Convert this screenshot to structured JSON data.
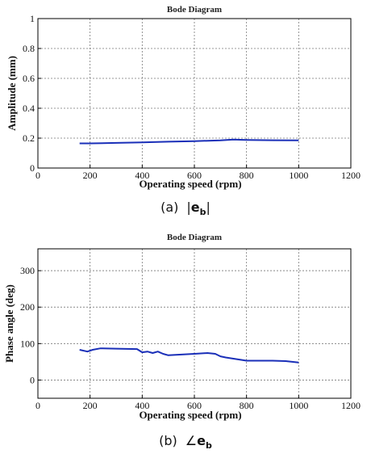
{
  "charts": [
    {
      "title": "Bode Diagram",
      "xlabel": "Operating speed (rpm)",
      "ylabel": "Amplitude (mm)",
      "caption": {
        "prefix": "(a)",
        "pre": "|",
        "symbol": "e",
        "sub": "b",
        "post": "|"
      },
      "xticks": [
        "0",
        "200",
        "400",
        "600",
        "800",
        "1000",
        "1200"
      ],
      "yticks": [
        "0",
        "0.2",
        "0.4",
        "0.6",
        "0.8",
        "1"
      ]
    },
    {
      "title": "Bode Diagram",
      "xlabel": "Operating speed (rpm)",
      "ylabel": "Phase angle (deg)",
      "caption": {
        "prefix": "(b)",
        "pre": "∠",
        "symbol": "e",
        "sub": "b",
        "post": ""
      },
      "xticks": [
        "0",
        "200",
        "400",
        "600",
        "800",
        "1000",
        "1200"
      ],
      "yticks": [
        "0",
        "100",
        "200",
        "300"
      ]
    }
  ],
  "chart_data": [
    {
      "type": "line",
      "title": "Bode Diagram",
      "xlabel": "Operating speed (rpm)",
      "ylabel": "Amplitude (mm)",
      "xlim": [
        0,
        1200
      ],
      "ylim": [
        0,
        1
      ],
      "grid": true,
      "color": "#1a2fb8",
      "x": [
        160,
        200,
        300,
        400,
        500,
        600,
        700,
        750,
        800,
        900,
        1000
      ],
      "y": [
        0.165,
        0.165,
        0.168,
        0.172,
        0.176,
        0.18,
        0.185,
        0.19,
        0.188,
        0.186,
        0.185
      ]
    },
    {
      "type": "line",
      "title": "Bode Diagram",
      "xlabel": "Operating speed (rpm)",
      "ylabel": "Phase angle (deg)",
      "xlim": [
        0,
        1200
      ],
      "ylim": [
        -50,
        360
      ],
      "grid": true,
      "color": "#1a2fb8",
      "x": [
        160,
        190,
        210,
        240,
        300,
        380,
        400,
        420,
        440,
        460,
        480,
        500,
        600,
        650,
        680,
        700,
        720,
        800,
        900,
        950,
        1000
      ],
      "y": [
        83,
        78,
        83,
        87,
        86,
        85,
        76,
        78,
        74,
        78,
        72,
        68,
        72,
        74,
        72,
        65,
        62,
        53,
        53,
        52,
        48
      ]
    }
  ]
}
